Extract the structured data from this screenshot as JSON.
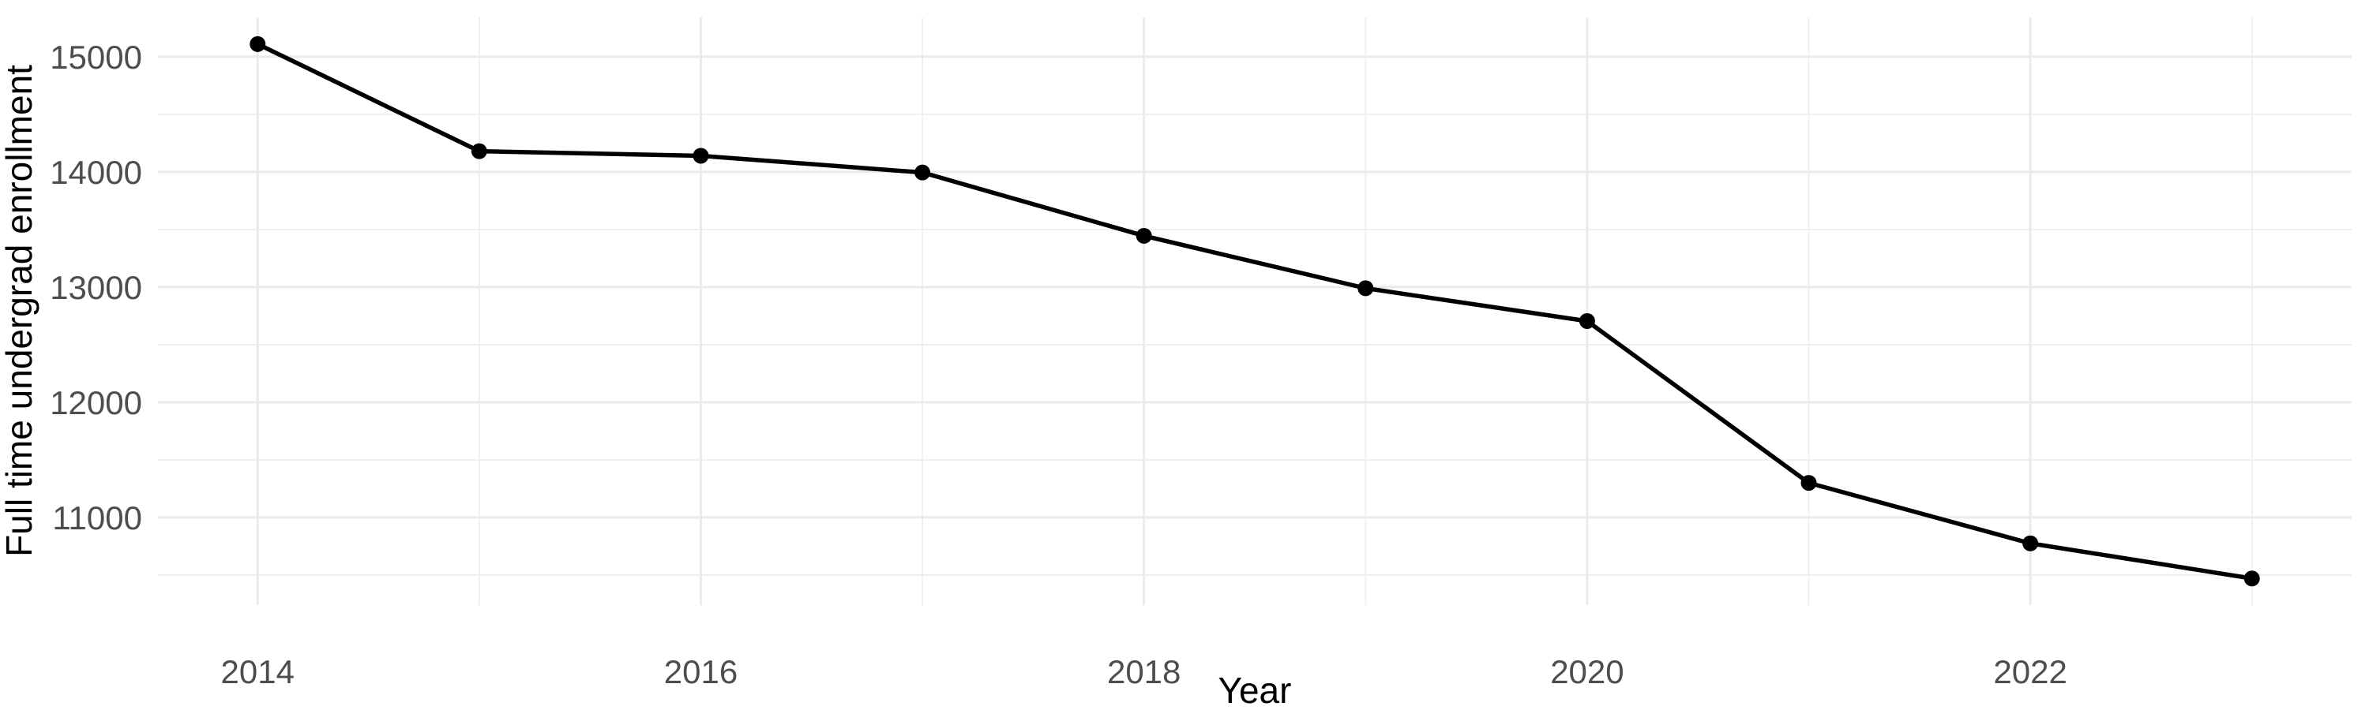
{
  "chart_data": {
    "type": "line",
    "title": "",
    "xlabel": "Year",
    "ylabel": "Full time undergrad enrollment",
    "x": [
      2014,
      2015,
      2016,
      2017,
      2018,
      2019,
      2020,
      2021,
      2022,
      2023
    ],
    "series": [
      {
        "name": "Full time undergrad enrollment",
        "values": [
          15110,
          14180,
          14140,
          13995,
          13445,
          12990,
          12705,
          11300,
          10775,
          10470
        ]
      }
    ],
    "x_major_ticks": [
      2014,
      2016,
      2018,
      2020,
      2022
    ],
    "x_minor_ticks": [
      2015,
      2017,
      2019,
      2021,
      2023
    ],
    "y_major_ticks": [
      11000,
      12000,
      13000,
      14000,
      15000
    ],
    "y_minor_ticks": [
      10500,
      11500,
      12500,
      13500,
      14500
    ],
    "xlim": [
      2013.55,
      2023.45
    ],
    "ylim": [
      10239,
      15342
    ],
    "grid": "on",
    "legend": "none",
    "colors": {
      "line": "#000000",
      "point": "#000000",
      "grid_major": "#EBEBEB",
      "grid_minor": "#EDEDED",
      "tick_text": "#4D4D4D",
      "axis_title_text": "#000000",
      "background": "#FFFFFF"
    }
  }
}
